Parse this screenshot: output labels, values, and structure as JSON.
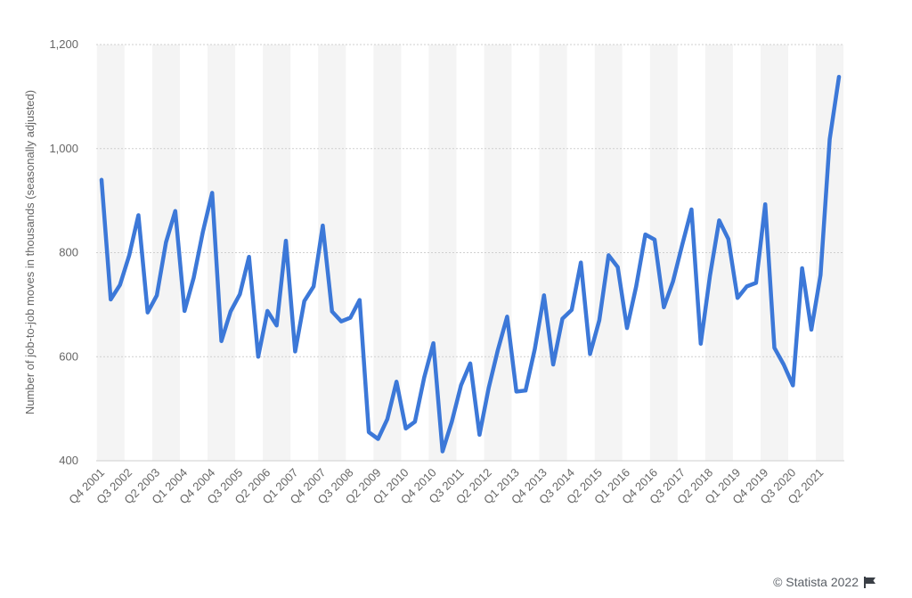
{
  "copyright": "© Statista 2022",
  "colors": {
    "line": "#3c78d8",
    "grid": "#cfcfcf",
    "band": "#f4f4f4",
    "text": "#666666"
  },
  "chart_data": {
    "type": "line",
    "ylabel": "Number of job-to-job moves in thousands (seasonally adjusted)",
    "xlabel": "",
    "ylim": [
      400,
      1200
    ],
    "yticks": [
      400,
      600,
      800,
      1000,
      1200
    ],
    "ytick_labels": [
      "400",
      "600",
      "800",
      "1,000",
      "1,200"
    ],
    "xtick_labels": [
      "Q4 2001",
      "Q3 2002",
      "Q2 2003",
      "Q1 2004",
      "Q4 2004",
      "Q3 2005",
      "Q2 2006",
      "Q1 2007",
      "Q4 2007",
      "Q3 2008",
      "Q2 2009",
      "Q1 2010",
      "Q4 2010",
      "Q3 2011",
      "Q2 2012",
      "Q1 2013",
      "Q4 2013",
      "Q3 2014",
      "Q2 2015",
      "Q1 2016",
      "Q4 2016",
      "Q3 2017",
      "Q2 2018",
      "Q1 2019",
      "Q4 2019",
      "Q3 2020",
      "Q2 2021"
    ],
    "grid": true,
    "legend": "none",
    "categories": [
      "Q4 2001",
      "Q1 2002",
      "Q2 2002",
      "Q3 2002",
      "Q4 2002",
      "Q1 2003",
      "Q2 2003",
      "Q3 2003",
      "Q4 2003",
      "Q1 2004",
      "Q2 2004",
      "Q3 2004",
      "Q4 2004",
      "Q1 2005",
      "Q2 2005",
      "Q3 2005",
      "Q4 2005",
      "Q1 2006",
      "Q2 2006",
      "Q3 2006",
      "Q4 2006",
      "Q1 2007",
      "Q2 2007",
      "Q3 2007",
      "Q4 2007",
      "Q1 2008",
      "Q2 2008",
      "Q3 2008",
      "Q4 2008",
      "Q1 2009",
      "Q2 2009",
      "Q3 2009",
      "Q4 2009",
      "Q1 2010",
      "Q2 2010",
      "Q3 2010",
      "Q4 2010",
      "Q1 2011",
      "Q2 2011",
      "Q3 2011",
      "Q4 2011",
      "Q1 2012",
      "Q2 2012",
      "Q3 2012",
      "Q4 2012",
      "Q1 2013",
      "Q2 2013",
      "Q3 2013",
      "Q4 2013",
      "Q1 2014",
      "Q2 2014",
      "Q3 2014",
      "Q4 2014",
      "Q1 2015",
      "Q2 2015",
      "Q3 2015",
      "Q4 2015",
      "Q1 2016",
      "Q2 2016",
      "Q3 2016",
      "Q4 2016",
      "Q1 2017",
      "Q2 2017",
      "Q3 2017",
      "Q4 2017",
      "Q1 2018",
      "Q2 2018",
      "Q3 2018",
      "Q4 2018",
      "Q1 2019",
      "Q2 2019",
      "Q3 2019",
      "Q4 2019",
      "Q1 2020",
      "Q2 2020",
      "Q3 2020",
      "Q4 2020",
      "Q1 2021",
      "Q2 2021",
      "Q3 2021",
      "Q4 2021"
    ],
    "values": [
      940,
      710,
      738,
      795,
      872,
      685,
      718,
      820,
      880,
      688,
      752,
      840,
      915,
      630,
      687,
      720,
      792,
      600,
      688,
      660,
      823,
      610,
      707,
      735,
      852,
      687,
      668,
      675,
      709,
      455,
      442,
      480,
      552,
      462,
      475,
      560,
      626,
      418,
      475,
      545,
      587,
      450,
      540,
      613,
      677,
      533,
      535,
      615,
      718,
      585,
      673,
      690,
      781,
      605,
      670,
      795,
      772,
      655,
      735,
      835,
      825,
      695,
      745,
      815,
      883,
      625,
      755,
      862,
      826,
      713,
      735,
      742,
      893,
      617,
      585,
      545,
      770,
      652,
      757,
      1018,
      1138
    ]
  }
}
